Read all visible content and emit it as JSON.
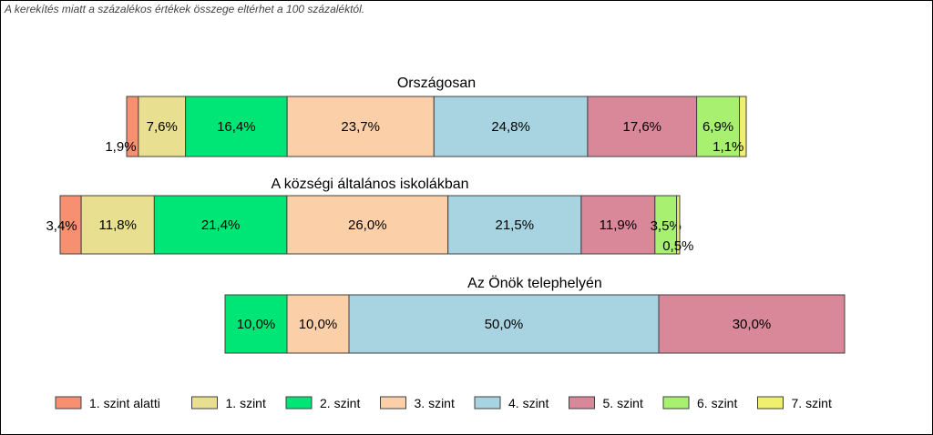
{
  "note": "A kerekítés miatt a  százalékos értékek összege eltérhet a 100 százaléktól.",
  "chart_data": {
    "type": "bar",
    "orientation": "horizontal-stacked-100",
    "legend_position": "bottom",
    "grid": false,
    "series": [
      {
        "name": "1. szint alatti",
        "color": "#F69070"
      },
      {
        "name": "1. szint",
        "color": "#E8E090"
      },
      {
        "name": "2. szint",
        "color": "#00E676"
      },
      {
        "name": "3. szint",
        "color": "#FBD0A8"
      },
      {
        "name": "4. szint",
        "color": "#A8D4E2"
      },
      {
        "name": "5. szint",
        "color": "#D88898"
      },
      {
        "name": "6. szint",
        "color": "#A8F070"
      },
      {
        "name": "7. szint",
        "color": "#F0F070"
      }
    ],
    "bars": [
      {
        "title": "Országosan",
        "values": [
          1.9,
          7.6,
          16.4,
          23.7,
          24.8,
          17.6,
          6.9,
          1.1
        ],
        "labels": [
          "1,9%",
          "7,6%",
          "16,4%",
          "23,7%",
          "24,8%",
          "17,6%",
          "6,9%",
          "1,1%"
        ]
      },
      {
        "title": "A községi általános iskolákban",
        "values": [
          3.4,
          11.8,
          21.4,
          26.0,
          21.5,
          11.9,
          3.5,
          0.5
        ],
        "labels": [
          "3,4%",
          "11,8%",
          "21,4%",
          "26,0%",
          "21,5%",
          "11,9%",
          "3,5%",
          "0,5%"
        ]
      },
      {
        "title": "Az Önök telephelyén",
        "values": [
          0,
          0,
          10.0,
          10.0,
          50.0,
          30.0,
          0,
          0
        ],
        "labels": [
          "",
          "",
          "10,0%",
          "10,0%",
          "50,0%",
          "30,0%",
          "",
          ""
        ]
      }
    ]
  }
}
